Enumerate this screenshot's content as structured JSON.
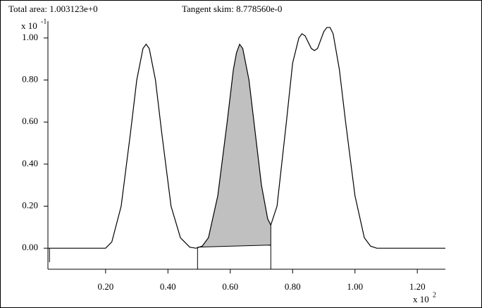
{
  "chart_data": {
    "type": "line",
    "title": "Total area:  1.003123e+0",
    "subtitle": "Tangent skim:  8.778560e-0",
    "y_multiplier": {
      "base": "x 10",
      "exponent": "-1"
    },
    "x_multiplier": {
      "base": "x 10",
      "exponent": "2"
    },
    "xlim": [
      0.015,
      1.29
    ],
    "ylim": [
      -0.1,
      1.08
    ],
    "xticks": [
      {
        "value": 0.2,
        "label": "0.20"
      },
      {
        "value": 0.4,
        "label": "0.40"
      },
      {
        "value": 0.6,
        "label": "0.60"
      },
      {
        "value": 0.8,
        "label": "0.80"
      },
      {
        "value": 1.0,
        "label": "1.00"
      },
      {
        "value": 1.2,
        "label": "1.20"
      }
    ],
    "yticks": [
      {
        "value": 0,
        "label": "0.00"
      },
      {
        "value": 0.2,
        "label": "0.20"
      },
      {
        "value": 0.4,
        "label": "0.40"
      },
      {
        "value": 0.6,
        "label": "0.60"
      },
      {
        "value": 0.8,
        "label": "0.80"
      },
      {
        "value": 1.0,
        "label": "1.00"
      }
    ],
    "x": [
      0.015,
      0.1,
      0.2,
      0.22,
      0.25,
      0.28,
      0.3,
      0.32,
      0.33,
      0.34,
      0.36,
      0.38,
      0.41,
      0.44,
      0.47,
      0.49,
      0.51,
      0.53,
      0.56,
      0.59,
      0.61,
      0.62,
      0.63,
      0.64,
      0.66,
      0.68,
      0.7,
      0.72,
      0.73,
      0.75,
      0.78,
      0.8,
      0.82,
      0.83,
      0.84,
      0.86,
      0.87,
      0.88,
      0.9,
      0.91,
      0.92,
      0.93,
      0.95,
      0.97,
      1.0,
      1.03,
      1.05,
      1.07,
      1.1,
      1.29
    ],
    "series": [
      {
        "color": "#000000",
        "values": [
          0,
          0,
          0,
          0.03,
          0.2,
          0.55,
          0.8,
          0.95,
          0.97,
          0.95,
          0.8,
          0.55,
          0.2,
          0.05,
          0.005,
          0,
          0.01,
          0.05,
          0.25,
          0.6,
          0.85,
          0.93,
          0.97,
          0.95,
          0.8,
          0.55,
          0.3,
          0.14,
          0.11,
          0.2,
          0.6,
          0.88,
          1.0,
          1.02,
          1.01,
          0.95,
          0.94,
          0.95,
          1.03,
          1.05,
          1.05,
          1.02,
          0.85,
          0.6,
          0.25,
          0.05,
          0.01,
          0,
          0,
          0
        ]
      }
    ],
    "skim": {
      "x": [
        0.495,
        0.73
      ],
      "baseline": [
        0.005,
        0.015
      ],
      "color": "#c0c0c0"
    },
    "drop_lines": [
      0.02,
      0.495,
      0.73
    ]
  }
}
